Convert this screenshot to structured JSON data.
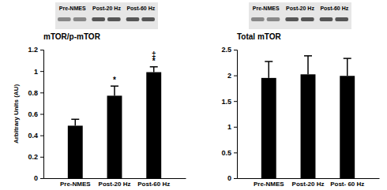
{
  "chart_data": [
    {
      "type": "bar",
      "title": "mTOR/p-mTOR",
      "y_label": "Arbitrary Units (AU)",
      "blot_labels": [
        "Pre-NMES",
        "Post-20 Hz",
        "Post-60 Hz"
      ],
      "categories": [
        "Pre-NMES",
        "Post-20 Hz",
        "Post-60 Hz"
      ],
      "values": [
        0.49,
        0.77,
        0.99
      ],
      "errors": [
        0.06,
        0.09,
        0.05
      ],
      "annotations": [
        null,
        [
          "*"
        ],
        [
          "‡",
          "*"
        ]
      ],
      "color": "#000000",
      "ylim": [
        0,
        1.2
      ],
      "yticks": [
        0,
        0.2,
        0.4,
        0.6,
        0.8,
        1,
        1.2
      ],
      "grid": false
    },
    {
      "type": "bar",
      "title": "Total mTOR",
      "blot_labels": [
        "Pre-NMES",
        "Post-20 Hz",
        "Post-60 Hz"
      ],
      "categories": [
        "Pre-NMES",
        "Post-20 Hz",
        "Post- 60 Hz"
      ],
      "values": [
        1.95,
        2.02,
        1.99
      ],
      "errors": [
        0.32,
        0.36,
        0.34
      ],
      "color": "#000000",
      "ylim": [
        0,
        2.5
      ],
      "yticks": [
        0,
        0.5,
        1,
        1.5,
        2,
        2.5
      ],
      "grid": false
    }
  ]
}
